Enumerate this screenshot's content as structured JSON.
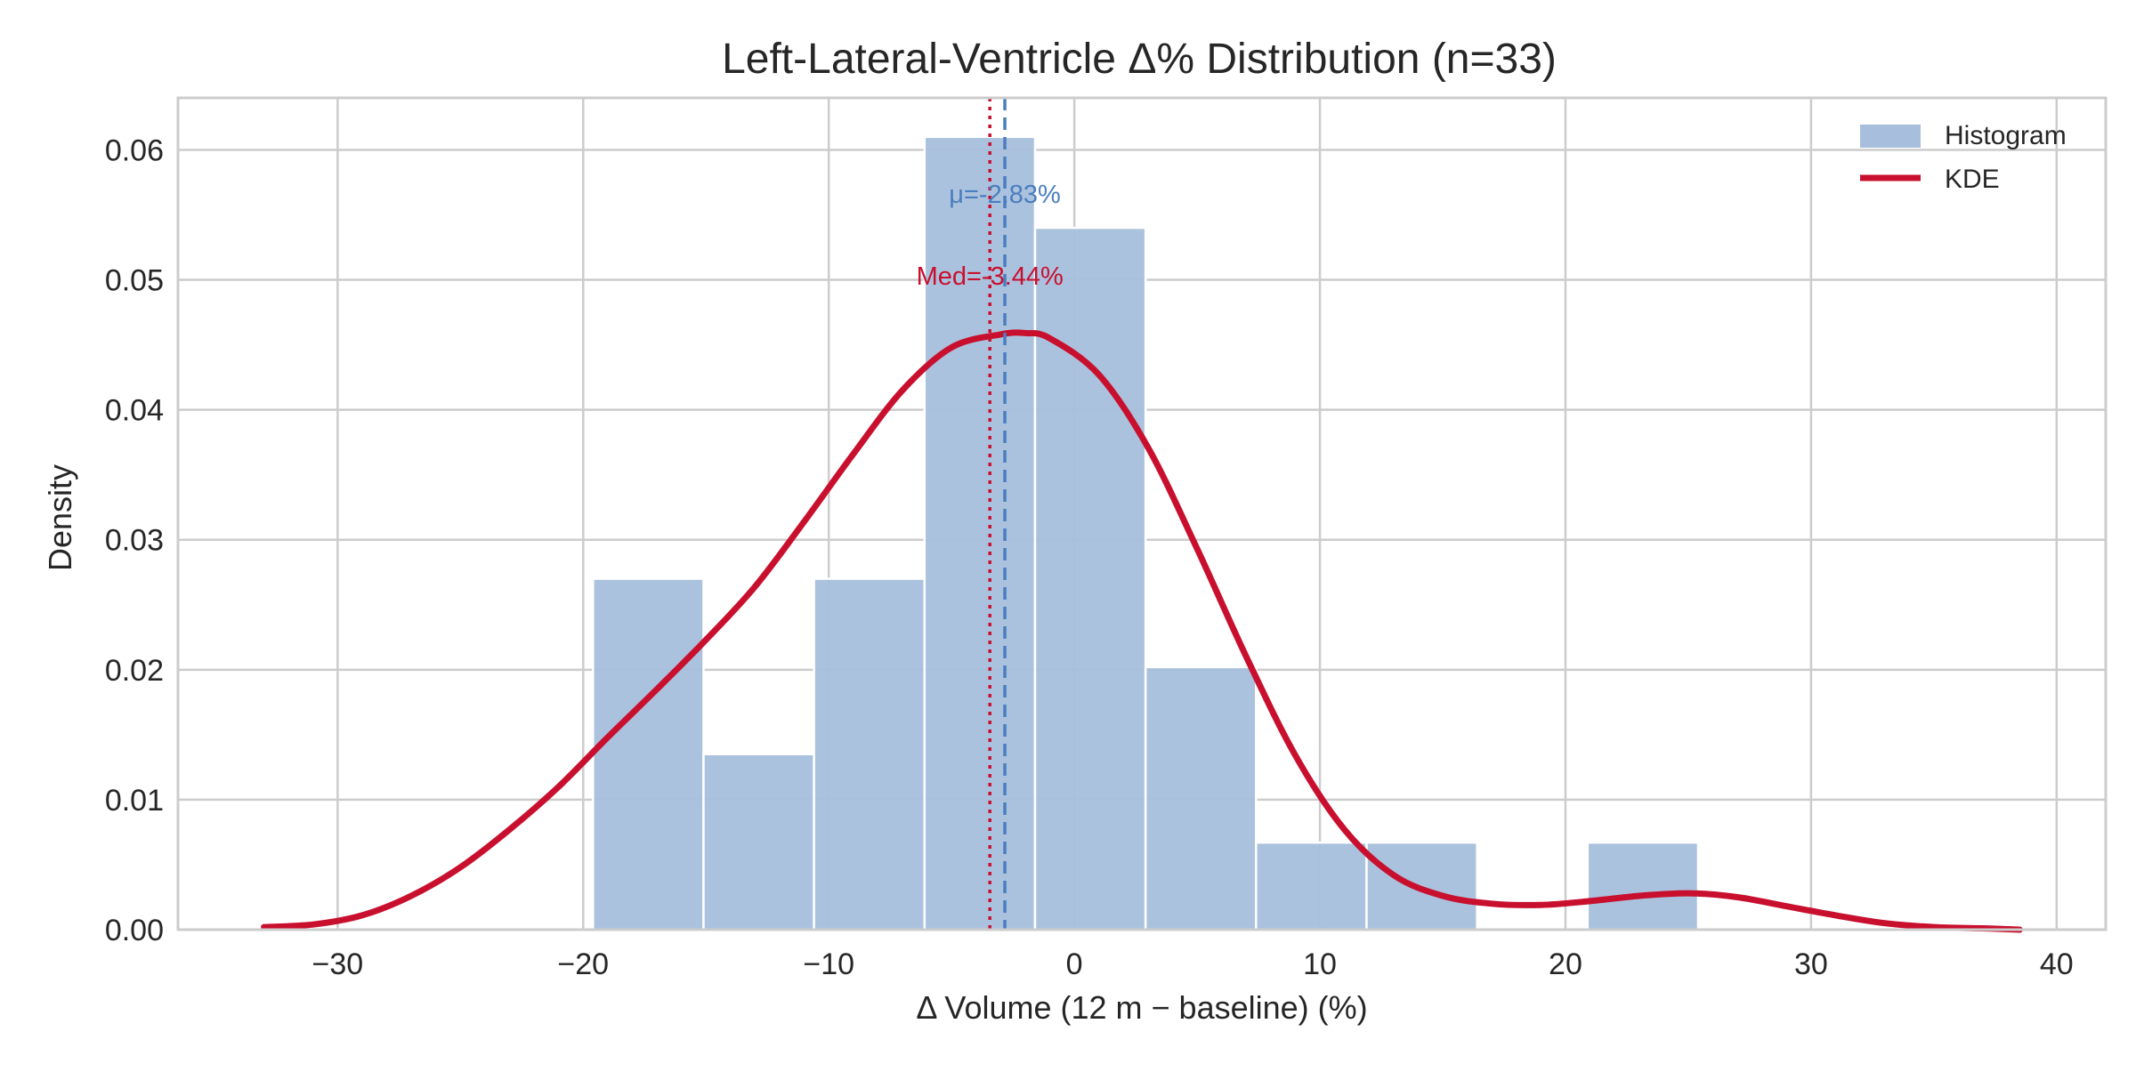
{
  "chart_data": {
    "type": "bar",
    "title": "Left-Lateral-Ventricle  Δ% Distribution  (n=33)",
    "xlabel": "Δ Volume (12 m − baseline) (%)",
    "ylabel": "Density",
    "xlim": [
      -36.5,
      42
    ],
    "ylim": [
      0,
      0.064
    ],
    "x_ticks": [
      -30,
      -20,
      -10,
      0,
      10,
      20,
      30,
      40
    ],
    "x_tick_labels": [
      "−30",
      "−20",
      "−10",
      "0",
      "10",
      "20",
      "30",
      "40"
    ],
    "y_ticks": [
      0,
      0.01,
      0.02,
      0.03,
      0.04,
      0.05,
      0.06
    ],
    "y_tick_labels": [
      "0.00",
      "0.01",
      "0.02",
      "0.03",
      "0.04",
      "0.05",
      "0.06"
    ],
    "grid": true,
    "legend_position": "top-right",
    "histogram": {
      "name": "Histogram",
      "bin_edges": [
        -19.6,
        -15.1,
        -10.6,
        -6.1,
        -1.6,
        2.9,
        7.4,
        11.9,
        16.4,
        20.9,
        25.4
      ],
      "values": [
        0.027,
        0.0135,
        0.027,
        0.061,
        0.054,
        0.0202,
        0.0067,
        0.0067,
        0.0,
        0.0067
      ],
      "color": "#a7bfdc",
      "edge_color": "#ffffff"
    },
    "kde": {
      "name": "KDE",
      "color": "#c8102e",
      "x": [
        -33,
        -31,
        -29,
        -27,
        -25,
        -23,
        -21,
        -19,
        -17,
        -15,
        -13,
        -11,
        -9,
        -7,
        -5,
        -3,
        -2,
        -1,
        1,
        3,
        5,
        7,
        9,
        11,
        13,
        15,
        17,
        19,
        21,
        23,
        25,
        27,
        29,
        31,
        33,
        35,
        37,
        38.5
      ],
      "y": [
        0.0002,
        0.0004,
        0.0011,
        0.0026,
        0.0048,
        0.0077,
        0.011,
        0.0148,
        0.0185,
        0.0223,
        0.0264,
        0.0314,
        0.0366,
        0.0415,
        0.0448,
        0.0458,
        0.0459,
        0.0455,
        0.0427,
        0.0371,
        0.0293,
        0.021,
        0.0134,
        0.0077,
        0.0042,
        0.0026,
        0.002,
        0.0019,
        0.0022,
        0.0026,
        0.0028,
        0.0025,
        0.0018,
        0.0011,
        0.0005,
        0.0002,
        0.0001,
        0.0
      ]
    },
    "mean": {
      "value": -2.83,
      "label": "μ=-2.83%",
      "color": "#4a7ebf"
    },
    "median": {
      "value": -3.44,
      "label": "Med=-3.44%",
      "color": "#c8102e"
    }
  }
}
